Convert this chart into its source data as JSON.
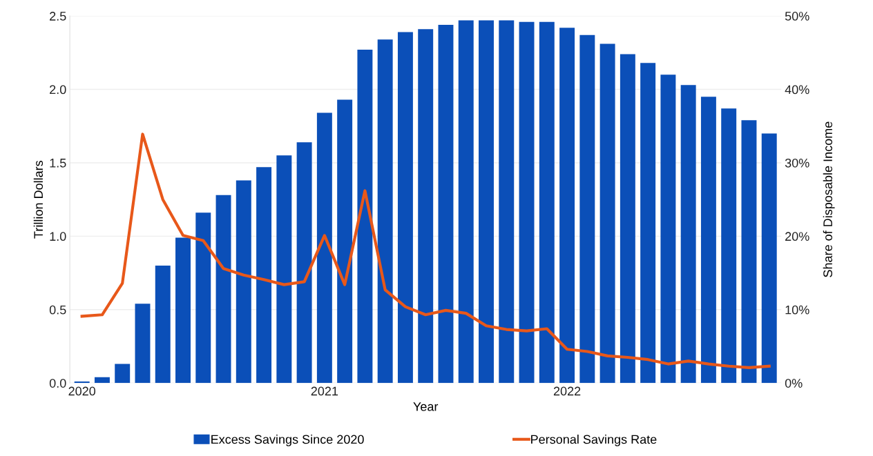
{
  "chart_data": {
    "type": "bar",
    "xlabel": "Year",
    "ylabel": "Trillion Dollars",
    "y2label": "Share of Disposable Income",
    "categories": [
      "2020",
      null,
      null,
      null,
      null,
      null,
      null,
      null,
      null,
      null,
      null,
      null,
      "2021",
      null,
      null,
      null,
      null,
      null,
      null,
      null,
      null,
      null,
      null,
      null,
      "2022",
      null,
      null,
      null,
      null,
      null,
      null,
      null,
      null,
      null,
      null
    ],
    "series": [
      {
        "name": "Excess Savings Since 2020",
        "color": "#0b4fb8",
        "values": [
          0.01,
          0.04,
          0.13,
          0.54,
          0.8,
          0.99,
          1.16,
          1.28,
          1.38,
          1.47,
          1.55,
          1.64,
          1.84,
          1.93,
          2.27,
          2.34,
          2.39,
          2.41,
          2.44,
          2.47,
          2.47,
          2.47,
          2.46,
          2.46,
          2.42,
          2.37,
          2.31,
          2.24,
          2.18,
          2.1,
          2.03,
          1.95,
          1.87,
          1.79,
          1.7
        ]
      },
      {
        "name": "Personal Savings Rate",
        "type": "line",
        "axis": "y2",
        "color": "#e8581a",
        "values": [
          9.1,
          9.3,
          13.6,
          33.9,
          25.0,
          20.1,
          19.4,
          15.6,
          14.7,
          14.1,
          13.4,
          13.8,
          20.1,
          13.4,
          26.2,
          12.7,
          10.4,
          9.3,
          9.9,
          9.5,
          7.8,
          7.3,
          7.1,
          7.4,
          4.6,
          4.3,
          3.7,
          3.5,
          3.2,
          2.6,
          3.0,
          2.6,
          2.3,
          2.1,
          2.3
        ]
      }
    ],
    "ylim": [
      0,
      2.5
    ],
    "yticks": [
      {
        "value": 0,
        "label": "0.0"
      },
      {
        "value": 0.5,
        "label": "0.5"
      },
      {
        "value": 1,
        "label": "1.0"
      },
      {
        "value": 1.5,
        "label": "1.5"
      },
      {
        "value": 2,
        "label": "2.0"
      },
      {
        "value": 2.5,
        "label": "2.5"
      }
    ],
    "y2lim": [
      0,
      50
    ],
    "y2ticks": [
      {
        "value": 0,
        "label": "0%"
      },
      {
        "value": 10,
        "label": "10%"
      },
      {
        "value": 20,
        "label": "20%"
      },
      {
        "value": 30,
        "label": "30%"
      },
      {
        "value": 40,
        "label": "40%"
      },
      {
        "value": 50,
        "label": "50%"
      }
    ],
    "grid": "y",
    "legend": "bottom",
    "marker": "none",
    "line_style": "solid"
  }
}
